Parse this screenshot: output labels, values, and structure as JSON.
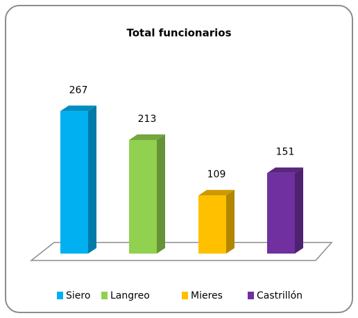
{
  "chart_data": {
    "type": "bar3d",
    "title": "Total funcionarios",
    "categories": [
      null
    ],
    "series": [
      {
        "name": "Siero",
        "color": "#00b0f0",
        "values": [
          267
        ]
      },
      {
        "name": "Langreo",
        "color": "#92d050",
        "values": [
          213
        ]
      },
      {
        "name": "Mieres",
        "color": "#ffc000",
        "values": [
          109
        ]
      },
      {
        "name": "Castrillón",
        "color": "#7030a0",
        "values": [
          151
        ]
      }
    ],
    "legend": "bottom"
  }
}
